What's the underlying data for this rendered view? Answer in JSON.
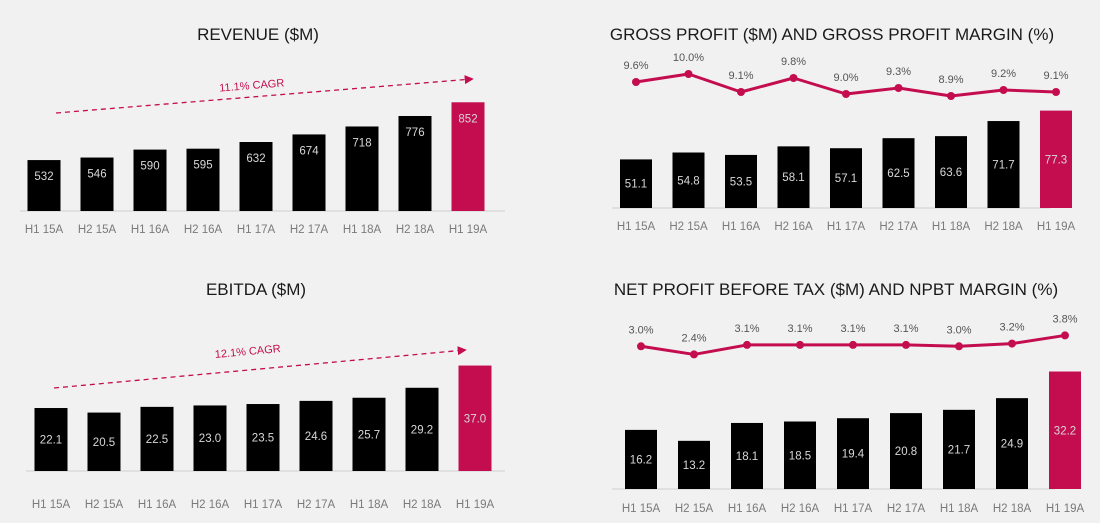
{
  "colors": {
    "bar": "#000000",
    "highlight": "#c40d4e",
    "baseline": "#cfcfcf",
    "background": "#f1f1f1"
  },
  "chart_data": [
    {
      "type": "bar",
      "title": "REVENUE ($M)",
      "categories": [
        "H1 15A",
        "H2 15A",
        "H1 16A",
        "H2 16A",
        "H1 17A",
        "H2 17A",
        "H1 18A",
        "H2 18A",
        "H1 19A"
      ],
      "values": [
        532,
        546,
        590,
        595,
        632,
        674,
        718,
        776,
        852
      ],
      "value_labels": [
        "532",
        "546",
        "590",
        "595",
        "632",
        "674",
        "718",
        "776",
        "852"
      ],
      "highlight_index": 8,
      "annotation": "11.1% CAGR",
      "ylim": [
        250,
        920
      ],
      "grid": false
    },
    {
      "type": "bar+line",
      "title": "GROSS PROFIT ($M) AND GROSS PROFIT MARGIN (%)",
      "categories": [
        "H1 15A",
        "H2 15A",
        "H1 16A",
        "H2 16A",
        "H1 17A",
        "H2 17A",
        "H1 18A",
        "H2 18A",
        "H1 19A"
      ],
      "values": [
        51.1,
        54.8,
        53.5,
        58.1,
        57.1,
        62.5,
        63.6,
        71.7,
        77.3
      ],
      "value_labels": [
        "51.1",
        "54.8",
        "53.5",
        "58.1",
        "57.1",
        "62.5",
        "63.6",
        "71.7",
        "77.3"
      ],
      "line_values": [
        9.6,
        10.0,
        9.1,
        9.8,
        9.0,
        9.3,
        8.9,
        9.2,
        9.1
      ],
      "line_labels": [
        "9.6%",
        "10.0%",
        "9.1%",
        "9.8%",
        "9.0%",
        "9.3%",
        "8.9%",
        "9.2%",
        "9.1%"
      ],
      "highlight_index": 8,
      "ylim": [
        25,
        83
      ],
      "line_ylim": [
        7.8,
        10.4
      ],
      "grid": false
    },
    {
      "type": "bar",
      "title": "EBITDA ($M)",
      "categories": [
        "H1 15A",
        "H2 15A",
        "H1 16A",
        "H2 16A",
        "H1 17A",
        "H2 17A",
        "H1 18A",
        "H2 18A",
        "H1 19A"
      ],
      "values": [
        22.1,
        20.5,
        22.5,
        23.0,
        23.5,
        24.6,
        25.7,
        29.2,
        37.0
      ],
      "value_labels": [
        "22.1",
        "20.5",
        "22.5",
        "23.0",
        "23.5",
        "24.6",
        "25.7",
        "29.2",
        "37.0"
      ],
      "highlight_index": 8,
      "annotation": "12.1% CAGR",
      "ylim": [
        0,
        40
      ],
      "grid": false
    },
    {
      "type": "bar+line",
      "title": "NET PROFIT BEFORE TAX ($M) AND NPBT MARGIN (%)",
      "categories": [
        "H1 15A",
        "H2 15A",
        "H1 16A",
        "H2 16A",
        "H1 17A",
        "H2 17A",
        "H1 18A",
        "H2 18A",
        "H1 19A"
      ],
      "values": [
        16.2,
        13.2,
        18.1,
        18.5,
        19.4,
        20.8,
        21.7,
        24.9,
        32.2
      ],
      "value_labels": [
        "16.2",
        "13.2",
        "18.1",
        "18.5",
        "19.4",
        "20.8",
        "21.7",
        "24.9",
        "32.2"
      ],
      "line_values": [
        3.0,
        2.4,
        3.1,
        3.1,
        3.1,
        3.1,
        3.0,
        3.2,
        3.8
      ],
      "line_labels": [
        "3.0%",
        "2.4%",
        "3.1%",
        "3.1%",
        "3.1%",
        "3.1%",
        "3.0%",
        "3.2%",
        "3.8%"
      ],
      "highlight_index": 8,
      "ylim": [
        0,
        37
      ],
      "line_ylim": [
        0,
        4.2
      ],
      "grid": false
    }
  ]
}
